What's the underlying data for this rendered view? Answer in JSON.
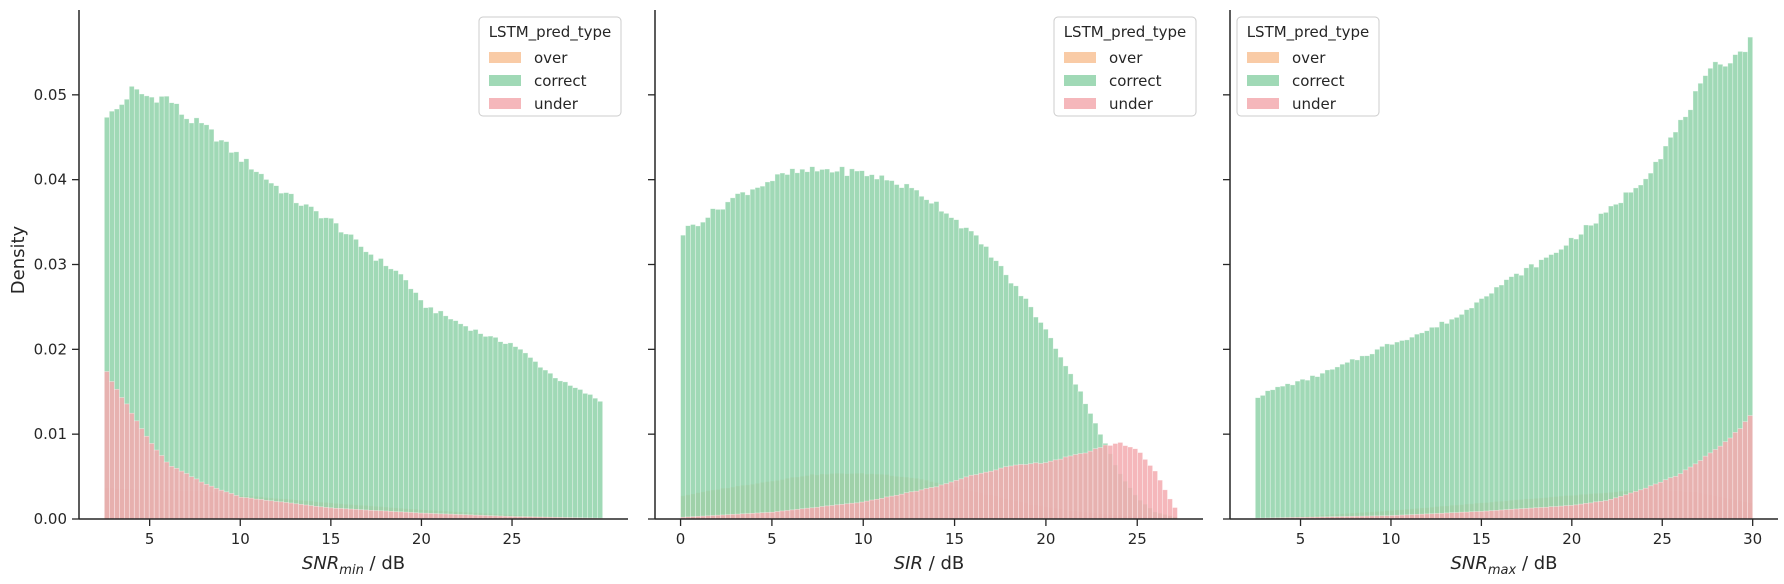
{
  "figure": {
    "ylabel": "Density"
  },
  "style": {
    "colors": {
      "over": "#f8c296",
      "correct": "#8fd2a9",
      "under": "#f3aaaf",
      "axis": "#262626"
    },
    "alpha": 0.85
  },
  "chart_data": [
    {
      "type": "bar",
      "title": "",
      "xlabel_main": "SNR",
      "xlabel_sub": "min",
      "xlabel_suffix": " / dB",
      "ylabel": "Density",
      "xlim": [
        1.1,
        31.4
      ],
      "ylim": [
        0,
        0.06
      ],
      "xticks": [
        5,
        10,
        15,
        20,
        25
      ],
      "yticks": [
        0.0,
        0.01,
        0.02,
        0.03,
        0.04,
        0.05
      ],
      "ytick_labels": [
        "0.00",
        "0.01",
        "0.02",
        "0.03",
        "0.04",
        "0.05"
      ],
      "show_yticklabels": true,
      "bins": {
        "start": 2.5,
        "end": 30,
        "count": 100
      },
      "legend": {
        "title": "LSTM_pred_type",
        "position": "top-right"
      },
      "series": [
        {
          "name": "over",
          "color": "#f8c296",
          "anchors": [
            [
              2.5,
              0.0037
            ],
            [
              5,
              0.0034
            ],
            [
              8,
              0.0033
            ],
            [
              10,
              0.0028
            ],
            [
              15,
              0.0019
            ],
            [
              20,
              0.0011
            ],
            [
              25,
              0.0005
            ],
            [
              28,
              0.0002
            ],
            [
              30,
              0.0001
            ]
          ]
        },
        {
          "name": "correct",
          "color": "#8fd2a9",
          "anchors": [
            [
              2.5,
              0.0477
            ],
            [
              3,
              0.0478
            ],
            [
              3.5,
              0.049
            ],
            [
              4,
              0.0506
            ],
            [
              5,
              0.0497
            ],
            [
              6,
              0.0497
            ],
            [
              7,
              0.0473
            ],
            [
              8,
              0.0463
            ],
            [
              10,
              0.0426
            ],
            [
              12,
              0.0392
            ],
            [
              13,
              0.0376
            ],
            [
              15,
              0.0352
            ],
            [
              17,
              0.0315
            ],
            [
              19,
              0.0286
            ],
            [
              20,
              0.0254
            ],
            [
              22,
              0.0232
            ],
            [
              24,
              0.0212
            ],
            [
              25,
              0.0207
            ],
            [
              27,
              0.0173
            ],
            [
              28,
              0.0159
            ],
            [
              29,
              0.0149
            ],
            [
              30,
              0.0138
            ]
          ]
        },
        {
          "name": "under",
          "color": "#f3aaaf",
          "anchors": [
            [
              2.5,
              0.0182
            ],
            [
              3,
              0.016
            ],
            [
              4,
              0.0125
            ],
            [
              5,
              0.0092
            ],
            [
              6,
              0.0065
            ],
            [
              8,
              0.0042
            ],
            [
              10,
              0.0026
            ],
            [
              15,
              0.0013
            ],
            [
              20,
              0.0007
            ],
            [
              25,
              0.0003
            ],
            [
              30,
              0.0001
            ]
          ]
        }
      ]
    },
    {
      "type": "bar",
      "title": "",
      "xlabel_main": "SIR",
      "xlabel_sub": "",
      "xlabel_suffix": " / dB",
      "ylabel": "",
      "xlim": [
        -1.4,
        28.6
      ],
      "ylim": [
        0,
        0.06
      ],
      "xticks": [
        0,
        5,
        10,
        15,
        20,
        25
      ],
      "yticks": [
        0.0,
        0.01,
        0.02,
        0.03,
        0.04,
        0.05
      ],
      "ytick_labels": [
        "",
        "",
        "",
        "",
        "",
        ""
      ],
      "show_yticklabels": false,
      "bins": {
        "start": 0,
        "end": 27.2,
        "count": 100
      },
      "legend": {
        "title": "LSTM_pred_type",
        "position": "top-right"
      },
      "series": [
        {
          "name": "over",
          "color": "#f8c296",
          "anchors": [
            [
              0,
              0.0027
            ],
            [
              2,
              0.0035
            ],
            [
              5,
              0.0045
            ],
            [
              7,
              0.0052
            ],
            [
              9,
              0.0054
            ],
            [
              11,
              0.0053
            ],
            [
              13,
              0.0048
            ],
            [
              15,
              0.0038
            ],
            [
              17,
              0.0028
            ],
            [
              19,
              0.0018
            ],
            [
              21,
              0.0011
            ],
            [
              23,
              0.0006
            ],
            [
              25,
              0.0003
            ],
            [
              27.2,
              0.0001
            ]
          ]
        },
        {
          "name": "correct",
          "color": "#8fd2a9",
          "anchors": [
            [
              0,
              0.0334
            ],
            [
              0.5,
              0.0345
            ],
            [
              1,
              0.035
            ],
            [
              2,
              0.0365
            ],
            [
              3,
              0.038
            ],
            [
              4,
              0.039
            ],
            [
              5,
              0.04
            ],
            [
              6,
              0.0408
            ],
            [
              7,
              0.041
            ],
            [
              8,
              0.0412
            ],
            [
              9,
              0.041
            ],
            [
              10,
              0.0408
            ],
            [
              11,
              0.0402
            ],
            [
              12,
              0.0395
            ],
            [
              13,
              0.0385
            ],
            [
              14,
              0.0372
            ],
            [
              15,
              0.0354
            ],
            [
              16,
              0.0335
            ],
            [
              17,
              0.0312
            ],
            [
              18,
              0.0282
            ],
            [
              19,
              0.0255
            ],
            [
              20,
              0.0222
            ],
            [
              21,
              0.0185
            ],
            [
              22,
              0.0145
            ],
            [
              23,
              0.01
            ],
            [
              24,
              0.0055
            ],
            [
              25,
              0.0025
            ],
            [
              26,
              0.0008
            ],
            [
              27.2,
              0.0002
            ]
          ]
        },
        {
          "name": "under",
          "color": "#f3aaaf",
          "anchors": [
            [
              0,
              0.0002
            ],
            [
              5,
              0.0008
            ],
            [
              10,
              0.002
            ],
            [
              14,
              0.0038
            ],
            [
              16,
              0.0052
            ],
            [
              18,
              0.0062
            ],
            [
              20,
              0.0067
            ],
            [
              22,
              0.0077
            ],
            [
              23,
              0.0085
            ],
            [
              24,
              0.009
            ],
            [
              25,
              0.0082
            ],
            [
              26,
              0.0056
            ],
            [
              27,
              0.0015
            ],
            [
              27.2,
              0.001
            ]
          ]
        }
      ]
    },
    {
      "type": "bar",
      "title": "",
      "xlabel_main": "SNR",
      "xlabel_sub": "max",
      "xlabel_suffix": " / dB",
      "ylabel": "",
      "xlim": [
        1.1,
        31.4
      ],
      "ylim": [
        0,
        0.06
      ],
      "xticks": [
        5,
        10,
        15,
        20,
        25,
        30
      ],
      "yticks": [
        0.0,
        0.01,
        0.02,
        0.03,
        0.04,
        0.05
      ],
      "ytick_labels": [
        "",
        "",
        "",
        "",
        "",
        ""
      ],
      "show_yticklabels": false,
      "bins": {
        "start": 2.5,
        "end": 30,
        "count": 100
      },
      "legend": {
        "title": "LSTM_pred_type",
        "position": "top-left"
      },
      "series": [
        {
          "name": "over",
          "color": "#f8c296",
          "anchors": [
            [
              2.5,
              0.0001
            ],
            [
              5,
              0.0003
            ],
            [
              10,
              0.001
            ],
            [
              15,
              0.0019
            ],
            [
              20,
              0.0028
            ],
            [
              23,
              0.0033
            ],
            [
              25,
              0.0035
            ],
            [
              27,
              0.0031
            ],
            [
              29,
              0.0023
            ],
            [
              30,
              0.0018
            ]
          ]
        },
        {
          "name": "correct",
          "color": "#8fd2a9",
          "anchors": [
            [
              2.5,
              0.0143
            ],
            [
              3,
              0.0148
            ],
            [
              4,
              0.0157
            ],
            [
              5,
              0.0162
            ],
            [
              7,
              0.0178
            ],
            [
              9,
              0.0197
            ],
            [
              10,
              0.0207
            ],
            [
              12,
              0.0222
            ],
            [
              14,
              0.0242
            ],
            [
              15,
              0.0262
            ],
            [
              17,
              0.0288
            ],
            [
              19,
              0.0312
            ],
            [
              20,
              0.033
            ],
            [
              22,
              0.0362
            ],
            [
              24,
              0.0402
            ],
            [
              25,
              0.0432
            ],
            [
              26,
              0.0465
            ],
            [
              27,
              0.0505
            ],
            [
              28,
              0.0535
            ],
            [
              29,
              0.0545
            ],
            [
              30,
              0.0565
            ]
          ]
        },
        {
          "name": "under",
          "color": "#f3aaaf",
          "anchors": [
            [
              2.5,
              0.0001
            ],
            [
              10,
              0.0004
            ],
            [
              15,
              0.0009
            ],
            [
              20,
              0.0016
            ],
            [
              22,
              0.0022
            ],
            [
              24,
              0.0036
            ],
            [
              26,
              0.0053
            ],
            [
              27,
              0.0068
            ],
            [
              28,
              0.0082
            ],
            [
              29,
              0.01
            ],
            [
              30,
              0.0125
            ]
          ]
        }
      ]
    }
  ]
}
